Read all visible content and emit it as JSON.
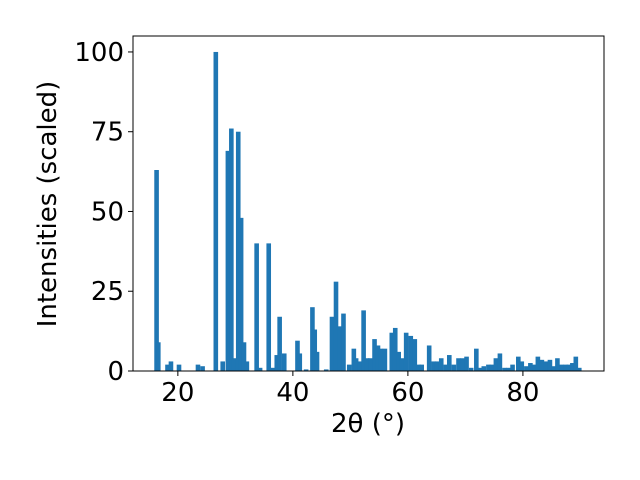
{
  "chart_data": {
    "type": "bar",
    "x_label": "2θ (°)",
    "y_label": "Intensities (scaled)",
    "color": "#1f77b4",
    "xlim": [
      12.2,
      94.1
    ],
    "xticks": [
      20,
      40,
      60,
      80
    ],
    "ylim": [
      0,
      105
    ],
    "yticks": [
      0,
      25,
      50,
      75,
      100
    ],
    "x": [
      16.3,
      16.6,
      18.2,
      18.8,
      20.2,
      23.5,
      24.3,
      26.6,
      27.8,
      28.7,
      29.3,
      29.8,
      30.5,
      31.0,
      31.5,
      32.0,
      33.7,
      34.3,
      35.8,
      36.5,
      37.2,
      37.7,
      38.5,
      40.8,
      41.2,
      42.3,
      43.4,
      43.8,
      44.2,
      45.8,
      46.8,
      47.5,
      48.2,
      48.8,
      49.8,
      50.6,
      51.0,
      51.7,
      52.3,
      52.9,
      53.5,
      54.2,
      54.8,
      55.3,
      56.0,
      57.2,
      57.8,
      58.4,
      59.0,
      59.7,
      60.5,
      61.2,
      61.9,
      62.4,
      63.7,
      64.5,
      65.1,
      65.8,
      66.6,
      67.2,
      68.0,
      68.8,
      69.5,
      70.2,
      71.0,
      71.9,
      72.5,
      73.2,
      74.0,
      74.6,
      75.3,
      76.0,
      76.8,
      77.5,
      78.2,
      79.2,
      79.8,
      80.6,
      81.3,
      82.0,
      82.6,
      83.3,
      84.0,
      84.7,
      85.3,
      86.0,
      86.7,
      87.4,
      88.0,
      88.6,
      89.2,
      89.8
    ],
    "values": [
      63,
      9,
      2,
      3,
      2,
      2,
      1.5,
      100,
      3,
      69,
      76,
      4,
      75,
      48,
      9,
      3,
      40,
      1,
      40,
      1,
      5,
      17,
      5.5,
      9.5,
      5.5,
      0.5,
      20,
      13,
      6,
      0.5,
      17,
      28,
      14,
      18,
      2,
      7,
      4,
      3,
      19,
      4,
      4,
      10,
      8,
      7,
      7,
      12,
      13.5,
      6,
      4,
      12,
      11,
      10,
      2,
      2,
      8,
      3,
      3,
      4,
      2,
      5,
      2,
      4,
      4,
      4.5,
      1,
      7,
      1,
      1.5,
      2,
      2,
      4,
      5.5,
      1,
      1,
      2,
      4.5,
      3,
      1.5,
      2.5,
      2,
      4.5,
      3.5,
      3,
      3.5,
      1.5,
      4,
      2,
      2,
      2,
      2.5,
      4.5,
      1
    ]
  }
}
